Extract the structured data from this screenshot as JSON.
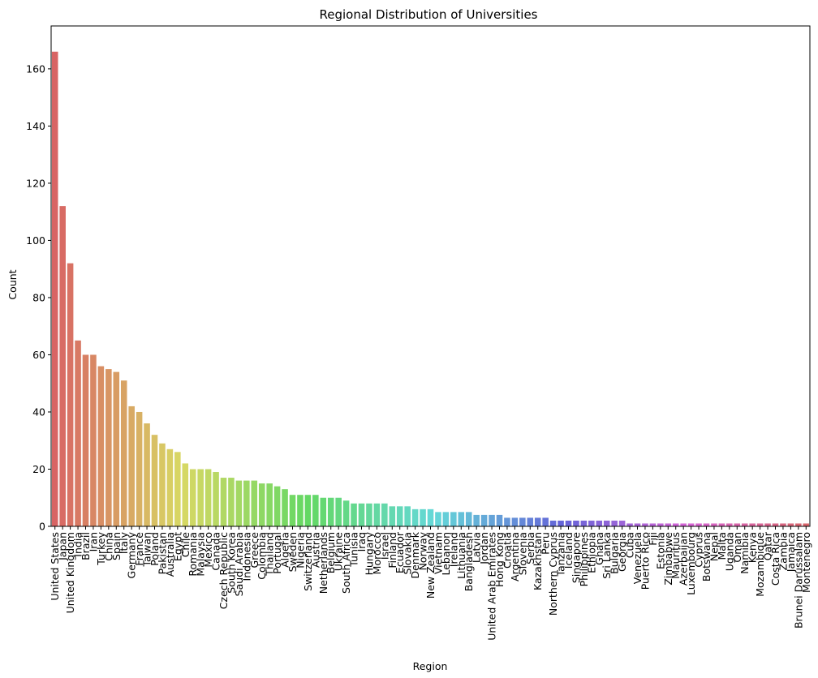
{
  "chart_data": {
    "type": "bar",
    "title": "Regional Distribution of Universities",
    "xlabel": "Region",
    "ylabel": "Count",
    "ylim": [
      0,
      175
    ],
    "yticks": [
      0,
      20,
      40,
      60,
      80,
      100,
      120,
      140,
      160
    ],
    "grid": false,
    "legend": "none",
    "categories": [
      "United States",
      "Japan",
      "United Kingdom",
      "India",
      "Brazil",
      "Iran",
      "Turkey",
      "China",
      "Spain",
      "Italy",
      "Germany",
      "France",
      "Taiwan",
      "Poland",
      "Pakistan",
      "Australia",
      "Egypt",
      "Chile",
      "Romania",
      "Malaysia",
      "Mexico",
      "Canada",
      "Czech Republic",
      "South Korea",
      "Saudi Arabia",
      "Indonesia",
      "Greece",
      "Colombia",
      "Thailand",
      "Portugal",
      "Algeria",
      "Sweden",
      "Nigeria",
      "Switzerland",
      "Austria",
      "Netherlands",
      "Belgium",
      "Ukraine",
      "South Africa",
      "Tunisia",
      "Iraq",
      "Hungary",
      "Morocco",
      "Israel",
      "Finland",
      "Ecuador",
      "Slovakia",
      "Denmark",
      "Norway",
      "New Zealand",
      "Vietnam",
      "Lebanon",
      "Ireland",
      "Lithuania",
      "Bangladesh",
      "Latvia",
      "Jordan",
      "United Arab Emirates",
      "Hong Kong",
      "Croatia",
      "Argentina",
      "Slovenia",
      "Serbia",
      "Kazakhstan",
      "Peru",
      "Northern Cyprus",
      "Tanzania",
      "Iceland",
      "Singapore",
      "Philippines",
      "Ethiopia",
      "Ghana",
      "Sri Lanka",
      "Bulgaria",
      "Georgia",
      "Cuba",
      "Venezuela",
      "Puerto Rico",
      "Fiji",
      "Estonia",
      "Zimbabwe",
      "Mauritius",
      "Azerbaijan",
      "Luxembourg",
      "Cyprus",
      "Botswana",
      "Nepal",
      "Malta",
      "Uganda",
      "Oman",
      "Namibia",
      "Kenya",
      "Mozambique",
      "Qatar",
      "Costa Rica",
      "Zambia",
      "Jamaica",
      "Brunei Darussalam",
      "Montenegro"
    ],
    "values": [
      166,
      112,
      92,
      65,
      60,
      60,
      56,
      55,
      54,
      51,
      42,
      40,
      36,
      32,
      29,
      27,
      26,
      22,
      20,
      20,
      20,
      19,
      17,
      17,
      16,
      16,
      16,
      15,
      15,
      14,
      13,
      11,
      11,
      11,
      11,
      10,
      10,
      10,
      9,
      8,
      8,
      8,
      8,
      8,
      7,
      7,
      7,
      6,
      6,
      6,
      5,
      5,
      5,
      5,
      5,
      4,
      4,
      4,
      4,
      3,
      3,
      3,
      3,
      3,
      3,
      2,
      2,
      2,
      2,
      2,
      2,
      2,
      2,
      2,
      2,
      1,
      1,
      1,
      1,
      1,
      1,
      1,
      1,
      1,
      1,
      1,
      1,
      1,
      1,
      1,
      1,
      1,
      1,
      1,
      1,
      1,
      1,
      1,
      1
    ]
  }
}
